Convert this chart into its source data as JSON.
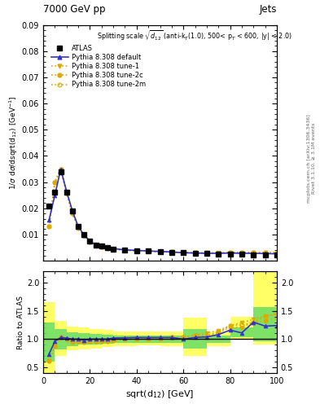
{
  "title_top": "7000 GeV pp",
  "title_right": "Jets",
  "ylabel_main": "1/σ dσ/dsqrt{d$_{12}$} [GeV$^{-1}$]",
  "ylabel_ratio": "Ratio to ATLAS",
  "xlabel": "sqrt(d$_{12}$) [GeV]",
  "right_label1": "Rivet 3.1.10, ≥ 3.1M events",
  "right_label2": "[arXiv:1306.3436]",
  "right_label3": "mcplots.cern.ch",
  "xlim": [
    0,
    100
  ],
  "ylim_main": [
    0.0,
    0.09
  ],
  "ylim_ratio": [
    0.4,
    2.2
  ],
  "yticks_main": [
    0.01,
    0.02,
    0.03,
    0.04,
    0.05,
    0.06,
    0.07,
    0.08,
    0.09
  ],
  "yticks_ratio": [
    0.5,
    1.0,
    1.5,
    2.0
  ],
  "data_x": [
    2.5,
    5.0,
    7.5,
    10.0,
    12.5,
    15.0,
    17.5,
    20.0,
    22.5,
    25.0,
    27.5,
    30.0,
    35.0,
    40.0,
    45.0,
    50.0,
    55.0,
    60.0,
    65.0,
    70.0,
    75.0,
    80.0,
    85.0,
    90.0,
    95.0,
    100.0
  ],
  "data_y": [
    0.021,
    0.026,
    0.034,
    0.026,
    0.019,
    0.013,
    0.01,
    0.0075,
    0.006,
    0.0055,
    0.005,
    0.0045,
    0.004,
    0.0038,
    0.0036,
    0.0034,
    0.0032,
    0.003,
    0.0028,
    0.0027,
    0.0026,
    0.0025,
    0.0024,
    0.0023,
    0.0022,
    0.0021
  ],
  "pythia_default_y": [
    0.0155,
    0.025,
    0.035,
    0.0265,
    0.019,
    0.013,
    0.0098,
    0.0075,
    0.006,
    0.0055,
    0.005,
    0.0046,
    0.0041,
    0.0039,
    0.0037,
    0.0035,
    0.0033,
    0.003,
    0.0029,
    0.0028,
    0.0028,
    0.0029,
    0.0028,
    0.0028,
    0.0027,
    0.0026
  ],
  "pythia_tune1_y": [
    0.013,
    0.03,
    0.035,
    0.0255,
    0.018,
    0.0125,
    0.0095,
    0.0073,
    0.0058,
    0.0053,
    0.0048,
    0.0044,
    0.004,
    0.0038,
    0.0036,
    0.0034,
    0.0033,
    0.0031,
    0.003,
    0.003,
    0.003,
    0.0031,
    0.0031,
    0.0031,
    0.0031,
    0.003
  ],
  "pythia_tune2c_y": [
    0.013,
    0.03,
    0.035,
    0.026,
    0.018,
    0.0125,
    0.0095,
    0.0073,
    0.0058,
    0.0053,
    0.0048,
    0.0044,
    0.004,
    0.0038,
    0.0036,
    0.0034,
    0.0033,
    0.0031,
    0.003,
    0.0028,
    0.0029,
    0.003,
    0.0029,
    0.003,
    0.0029,
    0.0029
  ],
  "pythia_tune2m_y": [
    0.013,
    0.03,
    0.035,
    0.026,
    0.018,
    0.0125,
    0.0095,
    0.0073,
    0.0058,
    0.0053,
    0.0048,
    0.0044,
    0.004,
    0.0038,
    0.0036,
    0.0034,
    0.0033,
    0.0031,
    0.003,
    0.0029,
    0.0029,
    0.0031,
    0.003,
    0.003,
    0.0031,
    0.003
  ],
  "ratio_default_y": [
    0.74,
    0.96,
    1.03,
    1.02,
    1.0,
    1.0,
    0.98,
    1.0,
    1.0,
    1.0,
    1.0,
    1.02,
    1.025,
    1.03,
    1.03,
    1.03,
    1.03,
    1.0,
    1.03,
    1.04,
    1.08,
    1.16,
    1.11,
    1.3,
    1.23,
    1.24
  ],
  "ratio_tune1_y": [
    0.62,
    0.88,
    1.03,
    0.98,
    0.95,
    0.96,
    0.95,
    0.97,
    0.97,
    0.965,
    0.96,
    0.98,
    1.0,
    1.0,
    1.0,
    1.0,
    1.03,
    1.03,
    1.07,
    1.11,
    1.15,
    1.24,
    1.29,
    1.35,
    1.41,
    1.43
  ],
  "ratio_tune2c_y": [
    0.62,
    0.88,
    1.03,
    1.0,
    0.95,
    0.96,
    0.95,
    0.97,
    0.97,
    0.965,
    0.96,
    0.98,
    1.0,
    1.0,
    1.0,
    1.0,
    1.03,
    1.03,
    1.07,
    1.04,
    1.12,
    1.2,
    1.21,
    1.3,
    1.32,
    1.38
  ],
  "ratio_tune2m_y": [
    0.62,
    0.88,
    1.03,
    1.0,
    0.95,
    0.96,
    0.95,
    0.97,
    0.97,
    0.965,
    0.96,
    0.98,
    1.0,
    1.0,
    1.0,
    1.0,
    1.03,
    1.03,
    1.07,
    1.07,
    1.12,
    1.24,
    1.25,
    1.3,
    1.4,
    1.45
  ],
  "band_x_edges": [
    0,
    5,
    10,
    15,
    20,
    25,
    30,
    40,
    50,
    60,
    70,
    80,
    90,
    100
  ],
  "yellow_band_lo": [
    0.41,
    0.7,
    0.8,
    0.82,
    0.84,
    0.86,
    0.87,
    0.89,
    0.88,
    0.7,
    0.88,
    1.0,
    0.9,
    0.88
  ],
  "yellow_band_hi": [
    1.65,
    1.32,
    1.22,
    1.2,
    1.18,
    1.16,
    1.14,
    1.13,
    1.13,
    1.38,
    1.13,
    1.4,
    2.2,
    1.55
  ],
  "green_band_lo": [
    0.6,
    0.82,
    0.88,
    0.9,
    0.91,
    0.92,
    0.93,
    0.94,
    0.93,
    0.83,
    0.94,
    1.04,
    0.96,
    0.96
  ],
  "green_band_hi": [
    1.3,
    1.18,
    1.12,
    1.1,
    1.09,
    1.08,
    1.07,
    1.06,
    1.07,
    1.18,
    1.06,
    1.2,
    1.56,
    1.28
  ],
  "color_default": "#3333cc",
  "color_tune1": "#ddaa00",
  "color_tune2c": "#ddaa00",
  "color_tune2m": "#ddaa00",
  "color_atlas": "#000000",
  "color_yellow_band": "#ffff66",
  "color_green_band": "#66dd66",
  "bg_color": "#ffffff"
}
